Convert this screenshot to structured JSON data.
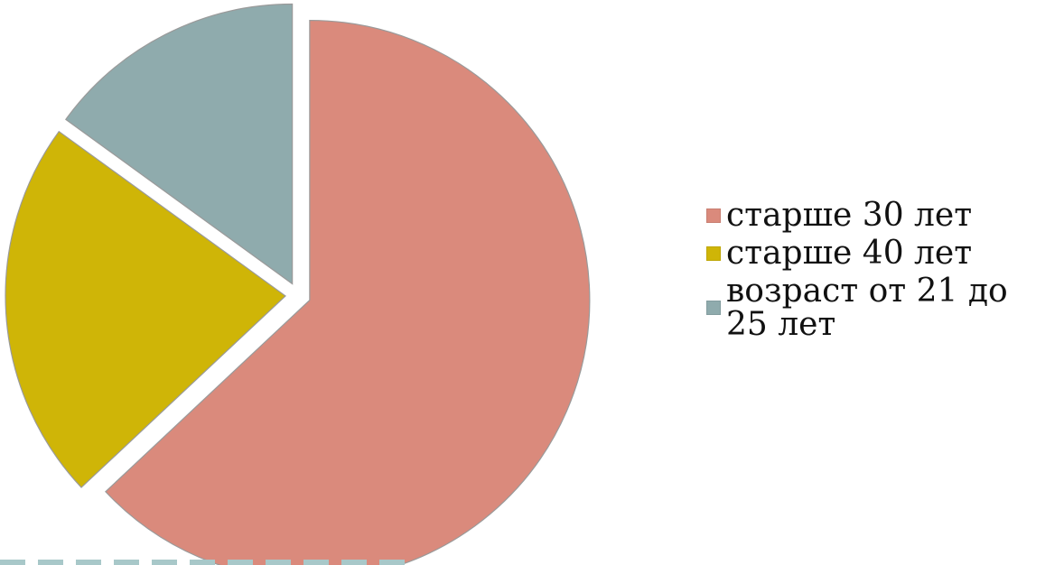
{
  "chart_data": {
    "type": "pie",
    "title": "",
    "series": [
      {
        "name": "старше 30 лет",
        "value": 63
      },
      {
        "name": "старше 40 лет",
        "value": 22
      },
      {
        "name": "возраст от 21 до 25 лет",
        "value": 15
      }
    ],
    "colors": [
      "#DA8A7C",
      "#CFB507",
      "#8FABAD"
    ],
    "legend_position": "right"
  },
  "legend": {
    "items": [
      {
        "label": "старше 30 лет"
      },
      {
        "label": "старше 40 лет"
      },
      {
        "label": "возраст от 21 до 25 лет"
      }
    ]
  },
  "decorations": {
    "dashed_line_color": "#A8C8C9"
  }
}
